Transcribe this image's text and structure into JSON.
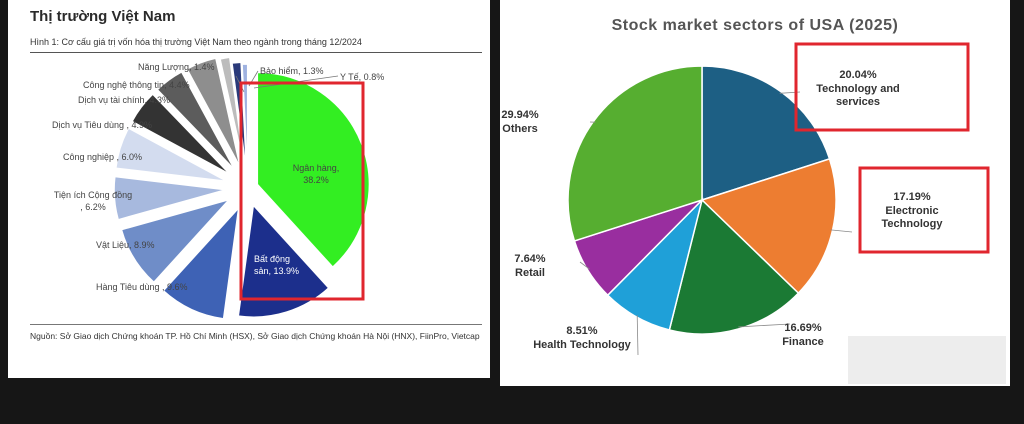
{
  "left_panel": {
    "title": "Thị trường Việt Nam",
    "subtitle": "Hình 1: Cơ cấu giá trị vốn hóa thị trường Việt Nam theo ngành trong tháng 12/2024",
    "source": "Nguồn: Sở Giao dịch Chứng khoán TP. Hồ Chí Minh (HSX), Sở Giao dịch Chứng khoán Hà Nội (HNX), FiinPro, Vietcap"
  },
  "right_panel": {
    "title": "Stock market sectors of USA (2025)"
  },
  "highlight_color": "#e0262e",
  "chart_data": [
    {
      "type": "pie",
      "title": "Hình 1: Cơ cấu giá trị vốn hóa thị trường Việt Nam theo ngành trong tháng 12/2024",
      "exploded": true,
      "start": "top, clockwise",
      "slices": [
        {
          "name": "Ngân hàng",
          "value": 38.2,
          "label": "Ngân hàng, 38.2%",
          "color": "#33ee22"
        },
        {
          "name": "Bất động sản",
          "value": 13.9,
          "label": "Bất động sản, 13.9%",
          "color": "#1c2f8c"
        },
        {
          "name": "Hàng Tiêu dùng",
          "value": 9.6,
          "label": "Hàng Tiêu dùng , 9.6%",
          "color": "#3e62b5"
        },
        {
          "name": "Vật Liệu",
          "value": 8.9,
          "label": "Vật Liệu, 8.9%",
          "color": "#6f8dc8"
        },
        {
          "name": "Tiện ích Cộng đồng",
          "value": 6.2,
          "label": "Tiện ích Cộng đồng , 6.2%",
          "color": "#a7b9de"
        },
        {
          "name": "Công nghiệp",
          "value": 6.0,
          "label": "Công nghiệp , 6.0%",
          "color": "#d3dcef"
        },
        {
          "name": "Dịch vụ Tiêu dùng",
          "value": 4.9,
          "label": "Dịch vụ Tiêu dùng , 4.9%",
          "color": "#333333"
        },
        {
          "name": "Dịch vụ tài chính",
          "value": 4.3,
          "label": "Dịch vụ tài chính, 4.3%",
          "color": "#5c5c5c"
        },
        {
          "name": "Công nghệ thông tin",
          "value": 4.4,
          "label": "Công nghệ thông tin, 4.4%",
          "color": "#8e8e8e"
        },
        {
          "name": "Năng Lượng",
          "value": 1.4,
          "label": "Năng Lượng, 1.4%",
          "color": "#bcbcbc"
        },
        {
          "name": "Bảo hiểm",
          "value": 1.3,
          "label": "Bảo hiểm, 1.3%",
          "color": "#2a3a7a"
        },
        {
          "name": "Y Tế",
          "value": 0.8,
          "label": "Y Tế, 0.8%",
          "color": "#9fb2e0"
        }
      ]
    },
    {
      "type": "pie",
      "title": "Stock market sectors of USA (2025)",
      "start": "top, clockwise",
      "slices": [
        {
          "name": "Technology and services",
          "value": 20.04,
          "label": "20.04%",
          "color": "#1d5f84"
        },
        {
          "name": "Electronic Technology",
          "value": 17.19,
          "label": "17.19%",
          "color": "#ed7d31"
        },
        {
          "name": "Finance",
          "value": 16.69,
          "label": "16.69%",
          "color": "#1b7a34"
        },
        {
          "name": "Health Technology",
          "value": 8.51,
          "label": "8.51%",
          "color": "#1fa0d8"
        },
        {
          "name": "Retail",
          "value": 7.64,
          "label": "7.64%",
          "color": "#992e9f"
        },
        {
          "name": "Others",
          "value": 29.94,
          "label": "29.94%",
          "color": "#56ae30"
        }
      ]
    }
  ]
}
